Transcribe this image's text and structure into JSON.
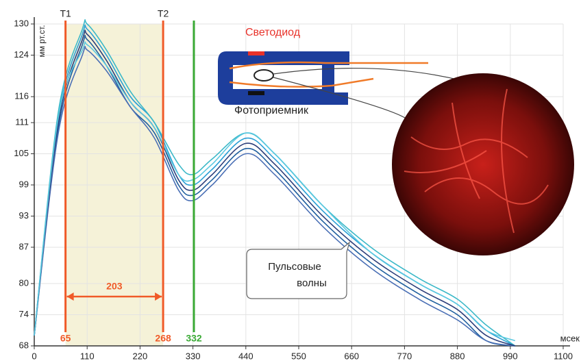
{
  "chart_data": {
    "type": "line",
    "y_label": "мм рт.ст.",
    "x_label": "мсек",
    "x": [
      0,
      50,
      100,
      110,
      150,
      200,
      250,
      300,
      330,
      370,
      440,
      500,
      600,
      700,
      800,
      880,
      940,
      1000
    ],
    "series": [
      {
        "color": "#2a9fd6",
        "values": [
          70,
          112,
          128,
          129,
          124,
          116,
          111,
          101,
          99,
          102,
          108,
          104,
          94,
          86,
          80,
          76,
          71,
          68
        ]
      },
      {
        "color": "#1f5f9e",
        "values": [
          70,
          110,
          126,
          127,
          122,
          114,
          109,
          99,
          97,
          100,
          106,
          102,
          92,
          84,
          78,
          74,
          69,
          68
        ]
      },
      {
        "color": "#3bb8c8",
        "values": [
          70,
          113,
          129,
          130,
          125,
          117,
          111,
          103,
          101,
          104,
          109,
          105,
          95,
          87,
          81,
          77,
          72,
          68
        ]
      },
      {
        "color": "#4a6fb5",
        "values": [
          70,
          109,
          124,
          125,
          121,
          114,
          108,
          98,
          96,
          99,
          105,
          101,
          91,
          83,
          77,
          73,
          69,
          68
        ]
      },
      {
        "color": "#2c3e7a",
        "values": [
          70,
          111,
          127,
          128,
          123,
          115,
          110,
          100,
          98,
          101,
          107,
          103,
          93,
          85,
          79,
          75,
          70,
          68
        ]
      },
      {
        "color": "#5ac8e0",
        "values": [
          70,
          112,
          125,
          126,
          122,
          115,
          110,
          101,
          100,
          103,
          109,
          105,
          95,
          86,
          80,
          76,
          71,
          69
        ]
      }
    ],
    "xlim": [
      0,
      1100
    ],
    "xticks": [
      0,
      110,
      220,
      330,
      440,
      550,
      660,
      770,
      880,
      990,
      1100
    ],
    "ylim": [
      68,
      130
    ],
    "yticks": [
      68,
      74,
      80,
      87,
      93,
      99,
      105,
      111,
      116,
      124,
      130
    ],
    "grid": true,
    "markers": [
      {
        "label": "T1",
        "x": 65,
        "color": "#f05a28"
      },
      {
        "label": "T2",
        "x": 268,
        "color": "#f05a28"
      },
      {
        "x": 332,
        "color": "#3aaa35"
      }
    ],
    "interval": 203,
    "annotations": {
      "led": "Светодиод",
      "detector": "Фотоприемник",
      "waves": [
        "Пульсовые",
        "волны"
      ]
    }
  }
}
